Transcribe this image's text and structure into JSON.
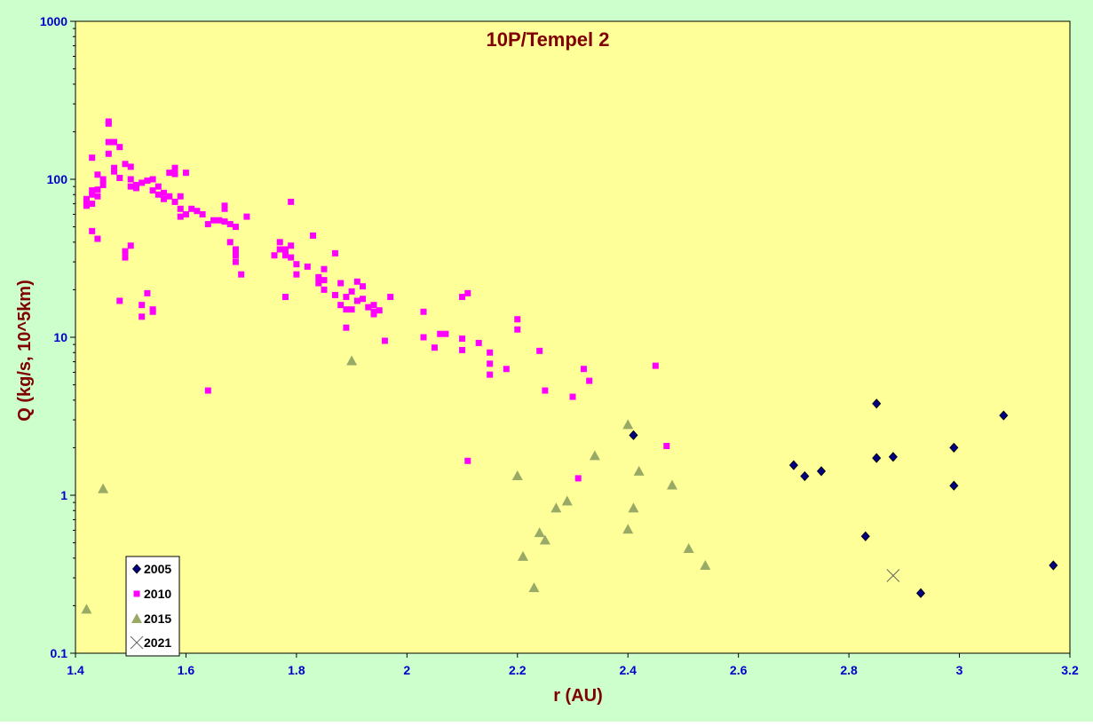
{
  "colors": {
    "outer_background": "#ccffcc",
    "plot_background": "#ffff99",
    "title": "#800000",
    "tick_labels": "#0000cc",
    "series_2005": "#000080",
    "series_2010": "#ff00ff",
    "series_2015": "#99aa66",
    "series_2021": "#666666"
  },
  "chart_data": {
    "type": "scatter",
    "title": "10P/Tempel 2",
    "xlabel": "r (AU)",
    "ylabel": "Q (kg/s, 10^5km)",
    "xlim": [
      1.4,
      3.2
    ],
    "ylim": [
      0.1,
      1000
    ],
    "yscale": "log",
    "grid": false,
    "legend_position": "bottom-left",
    "x_ticks": [
      "1.4",
      "1.6",
      "1.8",
      "2",
      "2.2",
      "2.4",
      "2.6",
      "2.8",
      "3",
      "3.2"
    ],
    "y_ticks": [
      "0.1",
      "1",
      "10",
      "100",
      "1000"
    ],
    "series": [
      {
        "name": "2005",
        "marker": "diamond",
        "points": [
          [
            2.41,
            2.4
          ],
          [
            2.7,
            1.55
          ],
          [
            2.72,
            1.32
          ],
          [
            2.75,
            1.42
          ],
          [
            2.83,
            0.55
          ],
          [
            2.85,
            3.8
          ],
          [
            2.85,
            1.72
          ],
          [
            2.88,
            1.75
          ],
          [
            2.93,
            0.24
          ],
          [
            2.99,
            2.0
          ],
          [
            2.99,
            1.15
          ],
          [
            3.08,
            3.2
          ],
          [
            3.17,
            0.36
          ]
        ]
      },
      {
        "name": "2010",
        "marker": "square",
        "points": [
          [
            1.42,
            68
          ],
          [
            1.42,
            72
          ],
          [
            1.42,
            75
          ],
          [
            1.43,
            80
          ],
          [
            1.43,
            85
          ],
          [
            1.43,
            137
          ],
          [
            1.43,
            70
          ],
          [
            1.43,
            47
          ],
          [
            1.44,
            78
          ],
          [
            1.44,
            107
          ],
          [
            1.44,
            86
          ],
          [
            1.44,
            42
          ],
          [
            1.45,
            92
          ],
          [
            1.45,
            100
          ],
          [
            1.46,
            225
          ],
          [
            1.46,
            232
          ],
          [
            1.46,
            172
          ],
          [
            1.46,
            145
          ],
          [
            1.47,
            172
          ],
          [
            1.47,
            118
          ],
          [
            1.47,
            112
          ],
          [
            1.48,
            160
          ],
          [
            1.48,
            102
          ],
          [
            1.48,
            17
          ],
          [
            1.49,
            125
          ],
          [
            1.49,
            32
          ],
          [
            1.49,
            35
          ],
          [
            1.5,
            38
          ],
          [
            1.5,
            120
          ],
          [
            1.5,
            90
          ],
          [
            1.5,
            100
          ],
          [
            1.51,
            92
          ],
          [
            1.51,
            88
          ],
          [
            1.52,
            16
          ],
          [
            1.52,
            13.5
          ],
          [
            1.52,
            95
          ],
          [
            1.53,
            98
          ],
          [
            1.53,
            19
          ],
          [
            1.54,
            100
          ],
          [
            1.54,
            15
          ],
          [
            1.54,
            14.5
          ],
          [
            1.54,
            85
          ],
          [
            1.55,
            80
          ],
          [
            1.55,
            90
          ],
          [
            1.56,
            75
          ],
          [
            1.56,
            82
          ],
          [
            1.57,
            110
          ],
          [
            1.57,
            78
          ],
          [
            1.58,
            115
          ],
          [
            1.58,
            118
          ],
          [
            1.58,
            108
          ],
          [
            1.58,
            72
          ],
          [
            1.59,
            78
          ],
          [
            1.59,
            65
          ],
          [
            1.59,
            58
          ],
          [
            1.6,
            110
          ],
          [
            1.6,
            60
          ],
          [
            1.61,
            65
          ],
          [
            1.62,
            63
          ],
          [
            1.63,
            60
          ],
          [
            1.64,
            52
          ],
          [
            1.64,
            4.6
          ],
          [
            1.65,
            55
          ],
          [
            1.66,
            55
          ],
          [
            1.67,
            54
          ],
          [
            1.67,
            65
          ],
          [
            1.67,
            68
          ],
          [
            1.68,
            40
          ],
          [
            1.68,
            52
          ],
          [
            1.69,
            36
          ],
          [
            1.69,
            33
          ],
          [
            1.69,
            50
          ],
          [
            1.69,
            30
          ],
          [
            1.7,
            25
          ],
          [
            1.71,
            58
          ],
          [
            1.76,
            33
          ],
          [
            1.77,
            40
          ],
          [
            1.77,
            36
          ],
          [
            1.78,
            33
          ],
          [
            1.78,
            18
          ],
          [
            1.78,
            36
          ],
          [
            1.79,
            32
          ],
          [
            1.79,
            38
          ],
          [
            1.79,
            72
          ],
          [
            1.8,
            25
          ],
          [
            1.8,
            29
          ],
          [
            1.82,
            28
          ],
          [
            1.83,
            44
          ],
          [
            1.84,
            24
          ],
          [
            1.84,
            22
          ],
          [
            1.85,
            27
          ],
          [
            1.85,
            20
          ],
          [
            1.85,
            23
          ],
          [
            1.87,
            34
          ],
          [
            1.87,
            18.5
          ],
          [
            1.88,
            16
          ],
          [
            1.88,
            22
          ],
          [
            1.89,
            18
          ],
          [
            1.89,
            15
          ],
          [
            1.89,
            11.5
          ],
          [
            1.9,
            15
          ],
          [
            1.9,
            19.5
          ],
          [
            1.91,
            17
          ],
          [
            1.91,
            22.5
          ],
          [
            1.92,
            21
          ],
          [
            1.92,
            17.5
          ],
          [
            1.93,
            15.5
          ],
          [
            1.94,
            14.5
          ],
          [
            1.94,
            16
          ],
          [
            1.94,
            14
          ],
          [
            1.95,
            14.8
          ],
          [
            1.96,
            9.5
          ],
          [
            1.97,
            18
          ],
          [
            2.03,
            14.5
          ],
          [
            2.03,
            10
          ],
          [
            2.05,
            8.6
          ],
          [
            2.06,
            10.5
          ],
          [
            2.07,
            10.5
          ],
          [
            2.1,
            18
          ],
          [
            2.1,
            9.8
          ],
          [
            2.1,
            8.3
          ],
          [
            2.11,
            19
          ],
          [
            2.11,
            1.65
          ],
          [
            2.13,
            9.2
          ],
          [
            2.15,
            8
          ],
          [
            2.15,
            6.8
          ],
          [
            2.15,
            5.8
          ],
          [
            2.18,
            6.3
          ],
          [
            2.2,
            13
          ],
          [
            2.2,
            11.2
          ],
          [
            2.24,
            8.2
          ],
          [
            2.25,
            4.6
          ],
          [
            2.3,
            4.2
          ],
          [
            2.31,
            1.28
          ],
          [
            2.32,
            6.3
          ],
          [
            2.33,
            5.3
          ],
          [
            2.45,
            6.6
          ],
          [
            2.47,
            2.05
          ]
        ]
      },
      {
        "name": "2015",
        "marker": "triangle",
        "points": [
          [
            1.42,
            0.19
          ],
          [
            1.45,
            1.1
          ],
          [
            1.9,
            7.1
          ],
          [
            2.2,
            1.33
          ],
          [
            2.21,
            0.41
          ],
          [
            2.23,
            0.26
          ],
          [
            2.24,
            0.58
          ],
          [
            2.25,
            0.52
          ],
          [
            2.27,
            0.83
          ],
          [
            2.29,
            0.92
          ],
          [
            2.34,
            1.78
          ],
          [
            2.4,
            0.61
          ],
          [
            2.4,
            2.8
          ],
          [
            2.41,
            0.83
          ],
          [
            2.42,
            1.42
          ],
          [
            2.48,
            1.16
          ],
          [
            2.51,
            0.46
          ],
          [
            2.54,
            0.36
          ]
        ]
      },
      {
        "name": "2021",
        "marker": "x",
        "points": [
          [
            2.88,
            0.31
          ]
        ]
      }
    ]
  }
}
